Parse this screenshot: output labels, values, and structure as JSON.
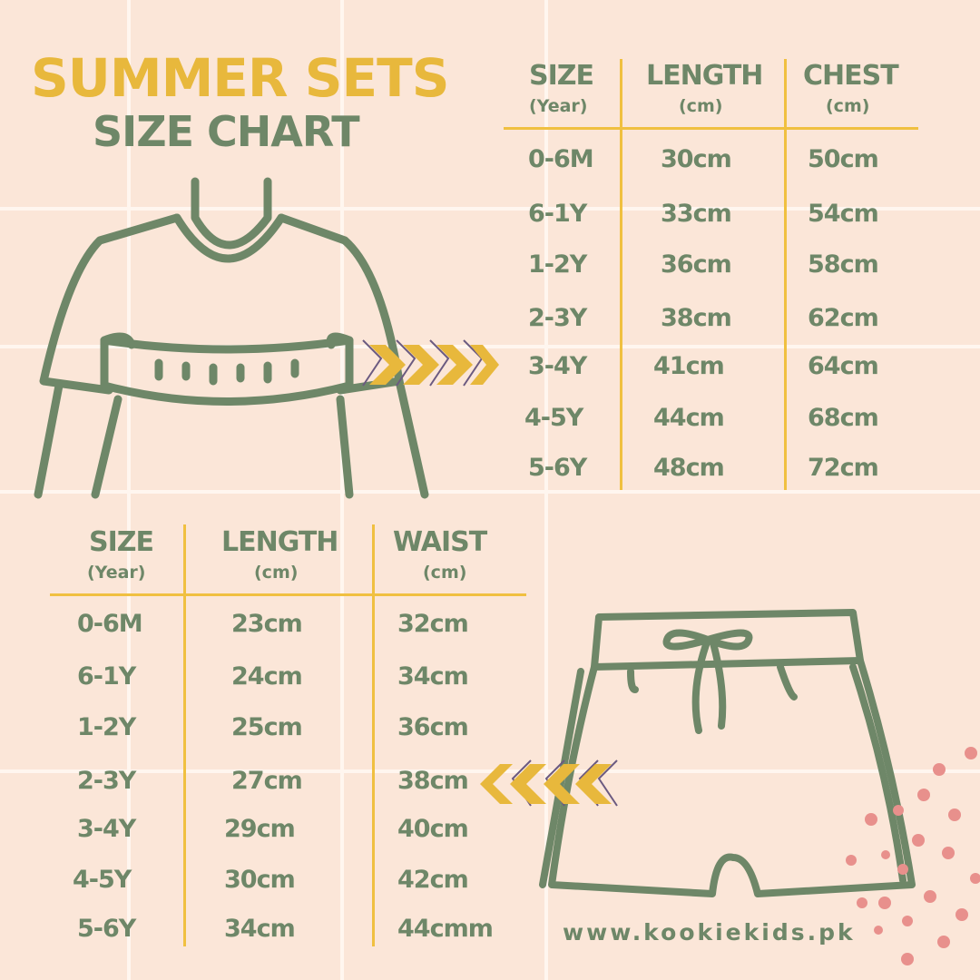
{
  "title": "SUMMER SETS",
  "subtitle": "SIZE CHART",
  "colors": {
    "background": "#fbe6d8",
    "green": "#6e8768",
    "yellow": "#e8b83c",
    "dots": "#e8908c"
  },
  "top_table": {
    "headers": [
      {
        "label": "SIZE",
        "unit": "(Year)"
      },
      {
        "label": "LENGTH",
        "unit": "(cm)"
      },
      {
        "label": "CHEST",
        "unit": "(cm)"
      }
    ],
    "rows": [
      [
        "0-6M",
        "30cm",
        "50cm"
      ],
      [
        "6-1Y",
        "33cm",
        "54cm"
      ],
      [
        "1-2Y",
        "36cm",
        "58cm"
      ],
      [
        "2-3Y",
        "38cm",
        "62cm"
      ],
      [
        "3-4Y",
        "41cm",
        "64cm"
      ],
      [
        "4-5Y",
        "44cm",
        "68cm"
      ],
      [
        "5-6Y",
        "48cm",
        "72cm"
      ]
    ]
  },
  "bottom_table": {
    "headers": [
      {
        "label": "SIZE",
        "unit": "(Year)"
      },
      {
        "label": "LENGTH",
        "unit": "(cm)"
      },
      {
        "label": "WAIST",
        "unit": "(cm)"
      }
    ],
    "rows": [
      [
        "0-6M",
        "23cm",
        "32cm"
      ],
      [
        "6-1Y",
        "24cm",
        "34cm"
      ],
      [
        "1-2Y",
        "25cm",
        "36cm"
      ],
      [
        "2-3Y",
        "27cm",
        "38cm"
      ],
      [
        "3-4Y",
        "29cm",
        "40cm"
      ],
      [
        "4-5Y",
        "30cm",
        "42cm"
      ],
      [
        "5-6Y",
        "34cm",
        "44cmm"
      ]
    ]
  },
  "website": "www.kookiekids.pk"
}
